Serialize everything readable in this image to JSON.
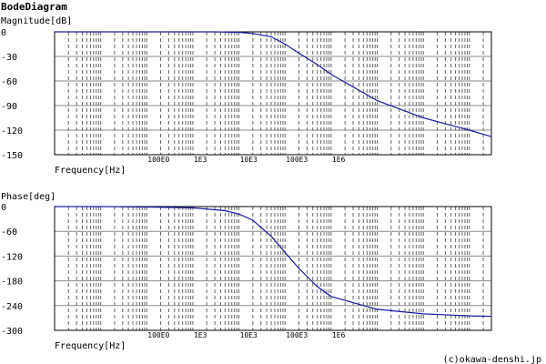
{
  "title": "BodeDiagram",
  "copyright": "(c)okawa-denshi.jp",
  "colors": {
    "curve": "#1a1aa0",
    "frame": "#000000",
    "grid": "#666666",
    "background": "#ffffff"
  },
  "chart_data": [
    {
      "type": "line",
      "ylabel": "Magnitude[dB]",
      "xlabel": "Frequency[Hz]",
      "xscale": "log",
      "xlim": [
        1,
        3000000000
      ],
      "ylim": [
        -150,
        0
      ],
      "yticks": [
        "0",
        "-30",
        "-60",
        "-90",
        "-120",
        "-150"
      ],
      "xticks": [
        "100E0",
        "1E3",
        "10E3",
        "100E3",
        "1E6"
      ],
      "grid": true,
      "series": [
        {
          "x": [
            1,
            10,
            100,
            1000,
            3000,
            10000,
            20000,
            50000,
            100000,
            200000,
            500000,
            1000000,
            10000000,
            100000000,
            1000000000,
            3000000000
          ],
          "y": [
            0,
            0,
            0,
            0,
            0,
            -0.5,
            -2,
            -6,
            -15,
            -26,
            -40,
            -52,
            -84,
            -105,
            -120,
            -128
          ]
        }
      ]
    },
    {
      "type": "line",
      "ylabel": "Phase[deg]",
      "xlabel": "Frequency[Hz]",
      "xscale": "log",
      "xlim": [
        1,
        3000000000
      ],
      "ylim": [
        -300,
        0
      ],
      "yticks": [
        "0",
        "-60",
        "-120",
        "-180",
        "-240",
        "-300"
      ],
      "xticks": [
        "100E0",
        "1E3",
        "10E3",
        "100E3",
        "1E6"
      ],
      "grid": true,
      "series": [
        {
          "x": [
            1,
            10,
            100,
            1000,
            5000,
            10000,
            20000,
            50000,
            100000,
            200000,
            500000,
            1000000,
            10000000,
            100000000,
            1000000000,
            3000000000
          ],
          "y": [
            0,
            0,
            -1,
            -3,
            -10,
            -18,
            -33,
            -72,
            -111,
            -150,
            -194,
            -218,
            -249,
            -260,
            -265,
            -266
          ]
        }
      ]
    }
  ]
}
